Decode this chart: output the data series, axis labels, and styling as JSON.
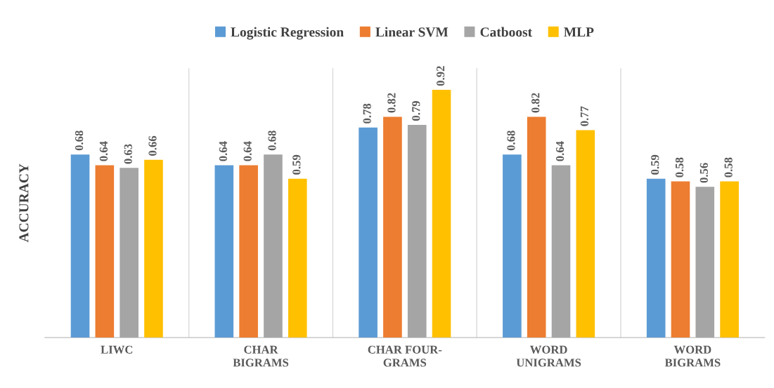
{
  "chart_data": {
    "type": "bar",
    "ylabel": "ACCURACY",
    "categories": [
      "LIWC",
      "CHAR\nBIGRAMS",
      "CHAR FOUR-\nGRAMS",
      "WORD\nUNIGRAMS",
      "WORD\nBIGRAMS"
    ],
    "series": [
      {
        "name": "Logistic Regression",
        "color": "#5b9bd5",
        "values": [
          0.68,
          0.64,
          0.78,
          0.68,
          0.59
        ]
      },
      {
        "name": "Linear SVM",
        "color": "#ed7d31",
        "values": [
          0.64,
          0.64,
          0.82,
          0.82,
          0.58
        ]
      },
      {
        "name": "Catboost",
        "color": "#a5a5a5",
        "values": [
          0.63,
          0.68,
          0.79,
          0.64,
          0.56
        ]
      },
      {
        "name": "MLP",
        "color": "#ffc000",
        "values": [
          0.66,
          0.59,
          0.92,
          0.77,
          0.58
        ]
      }
    ],
    "data_labels": true,
    "grid": "x",
    "legend": "top"
  }
}
